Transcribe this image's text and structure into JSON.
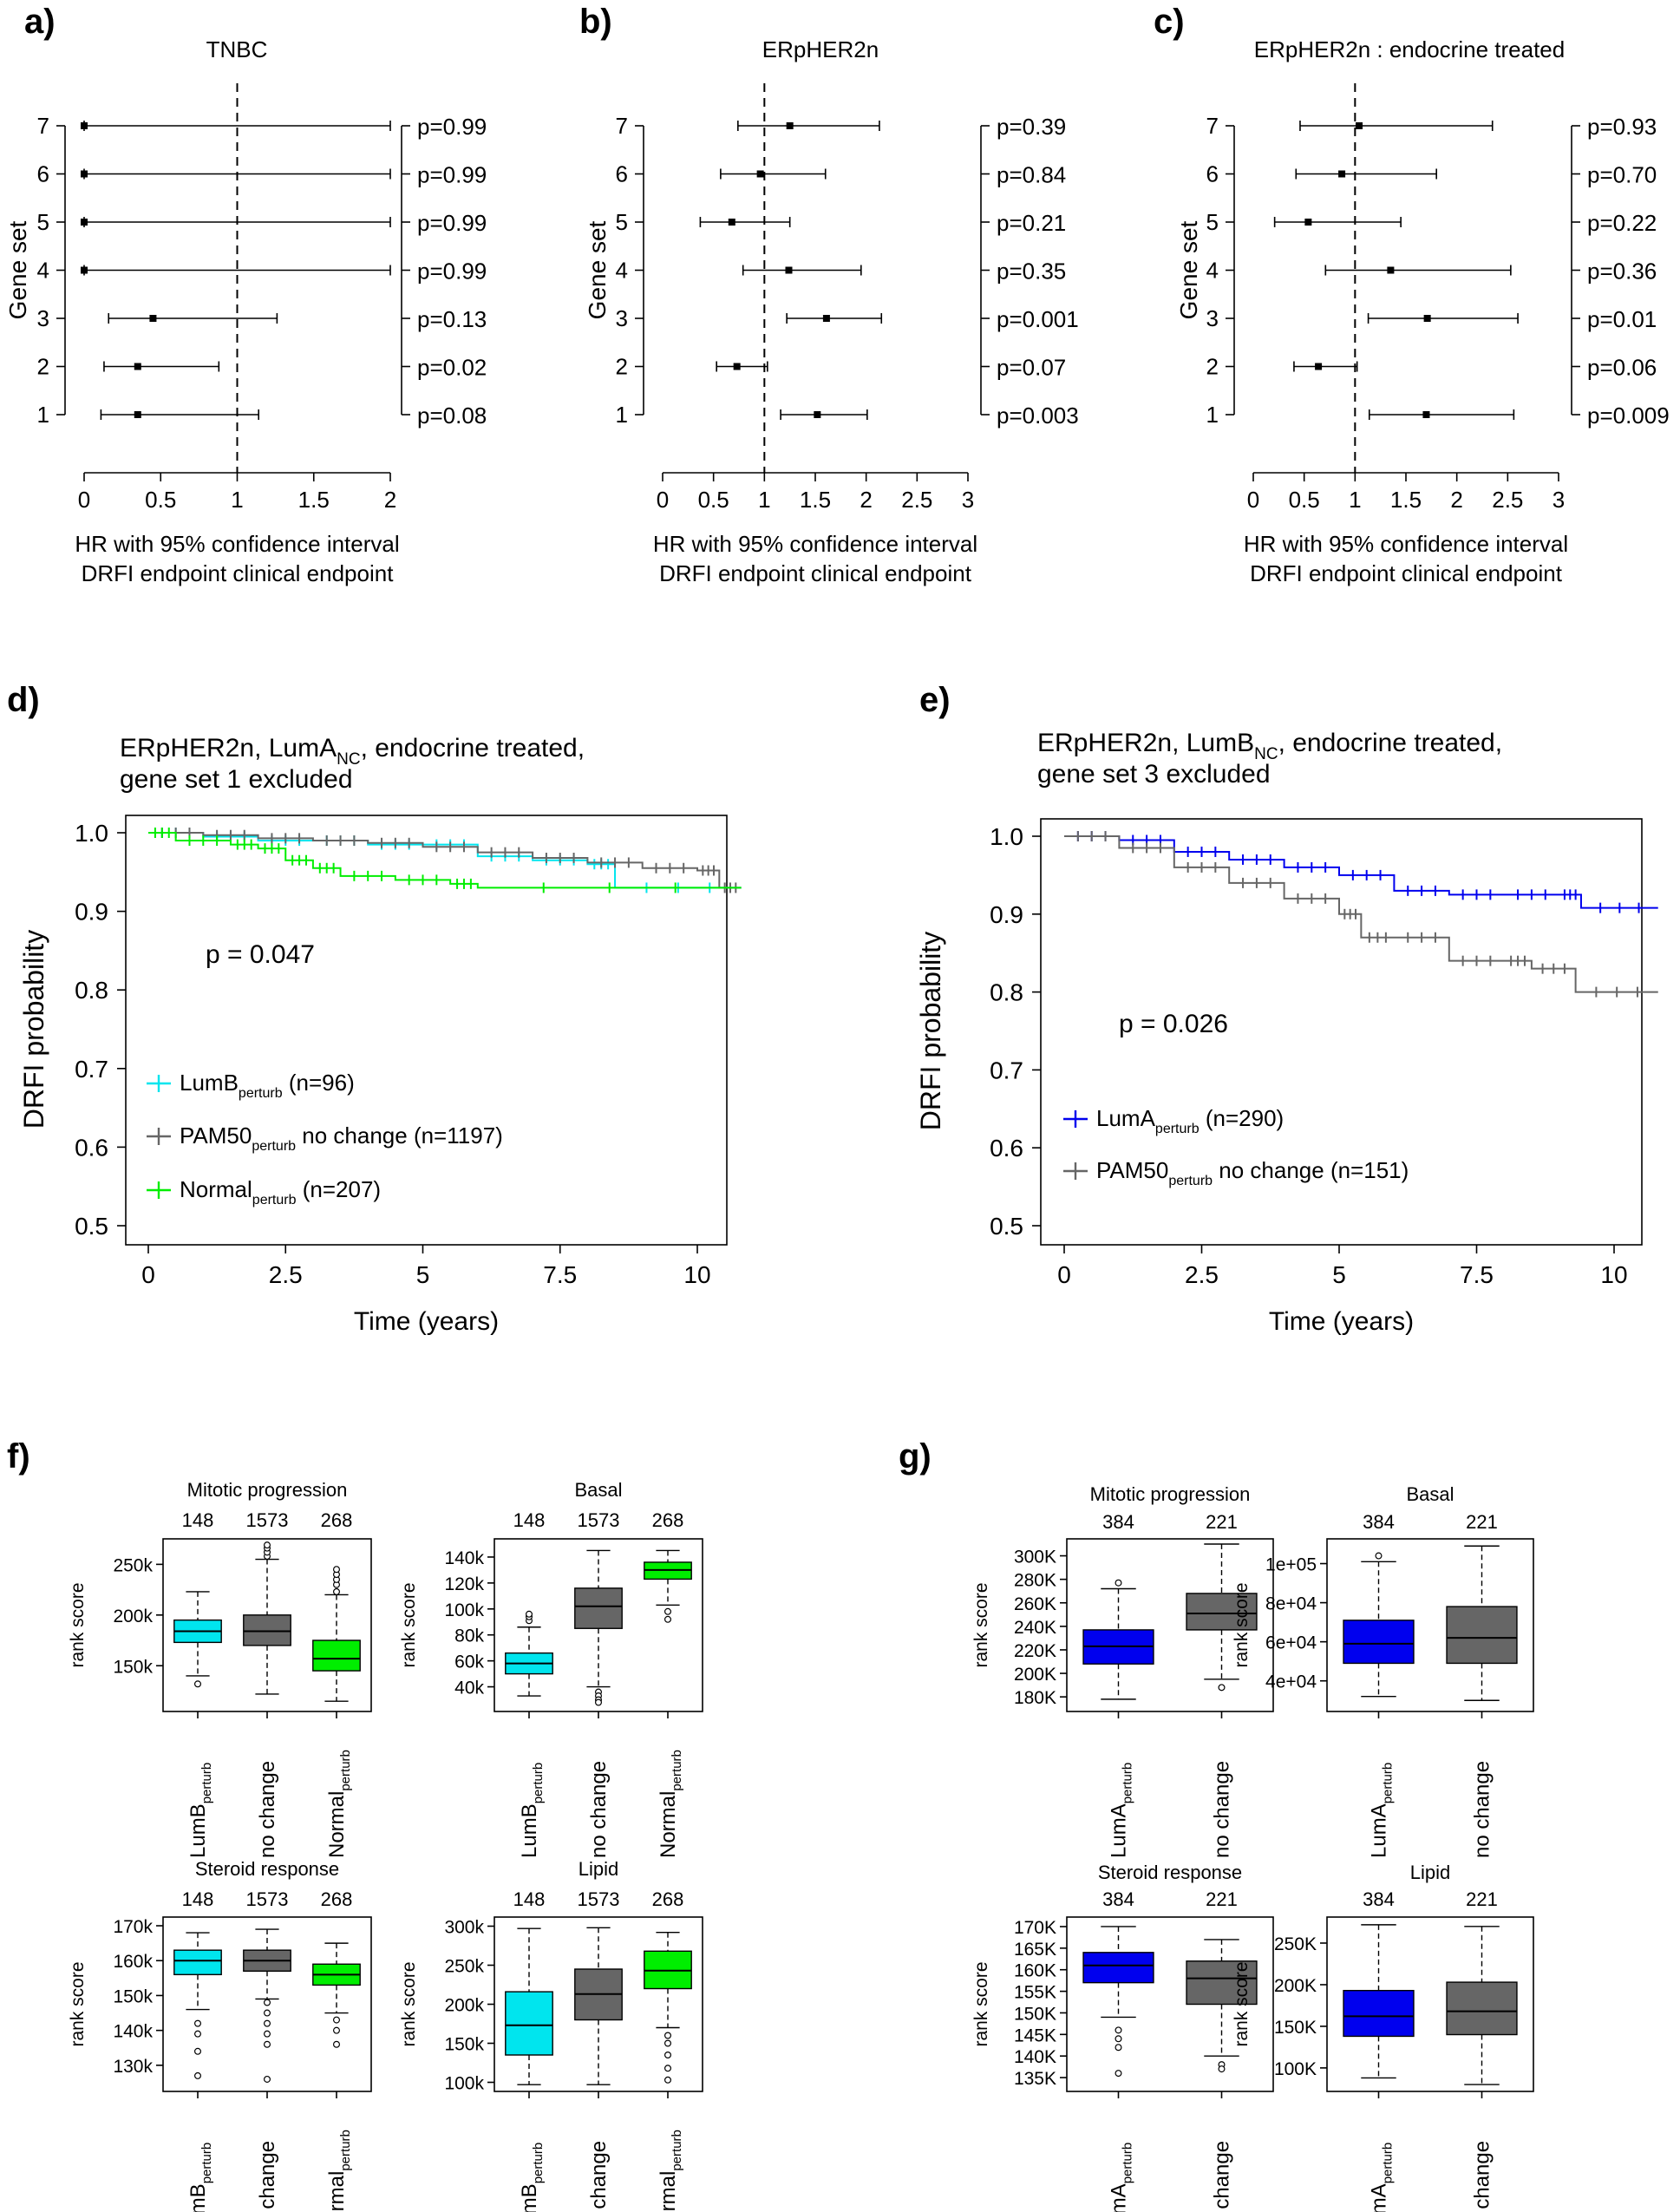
{
  "chart_data": [
    {
      "panel": "a)",
      "type": "forest",
      "title": "TNBC",
      "ylabel": "Gene set",
      "xlabel_lines": [
        "HR with 95% confidence interval",
        "DRFI endpoint clinical endpoint"
      ],
      "xlim": [
        0,
        2
      ],
      "xticks": [
        "0",
        "0.5",
        "1",
        "1.5",
        "2"
      ],
      "ref_line": 1,
      "rows": [
        {
          "set": "7",
          "hr": 0.0,
          "lo": 0.0,
          "hi": 2.0,
          "p": "p=0.99"
        },
        {
          "set": "6",
          "hr": 0.0,
          "lo": 0.0,
          "hi": 2.0,
          "p": "p=0.99"
        },
        {
          "set": "5",
          "hr": 0.0,
          "lo": 0.0,
          "hi": 2.0,
          "p": "p=0.99"
        },
        {
          "set": "4",
          "hr": 0.0,
          "lo": 0.0,
          "hi": 2.0,
          "p": "p=0.99"
        },
        {
          "set": "3",
          "hr": 0.45,
          "lo": 0.16,
          "hi": 1.26,
          "p": "p=0.13"
        },
        {
          "set": "2",
          "hr": 0.35,
          "lo": 0.13,
          "hi": 0.88,
          "p": "p=0.02"
        },
        {
          "set": "1",
          "hr": 0.35,
          "lo": 0.11,
          "hi": 1.14,
          "p": "p=0.08"
        }
      ]
    },
    {
      "panel": "b)",
      "type": "forest",
      "title": "ERpHER2n",
      "ylabel": "Gene set",
      "xlabel_lines": [
        "HR with 95% confidence interval",
        "DRFI endpoint clinical endpoint"
      ],
      "xlim": [
        0,
        3
      ],
      "xticks": [
        "0",
        "0.5",
        "1",
        "1.5",
        "2",
        "2.5",
        "3"
      ],
      "ref_line": 1,
      "rows": [
        {
          "set": "7",
          "hr": 1.25,
          "lo": 0.74,
          "hi": 2.13,
          "p": "p=0.39"
        },
        {
          "set": "6",
          "hr": 0.96,
          "lo": 0.57,
          "hi": 1.6,
          "p": "p=0.84"
        },
        {
          "set": "5",
          "hr": 0.68,
          "lo": 0.37,
          "hi": 1.25,
          "p": "p=0.21"
        },
        {
          "set": "4",
          "hr": 1.24,
          "lo": 0.79,
          "hi": 1.95,
          "p": "p=0.35"
        },
        {
          "set": "3",
          "hr": 1.61,
          "lo": 1.22,
          "hi": 2.15,
          "p": "p=0.001"
        },
        {
          "set": "2",
          "hr": 0.73,
          "lo": 0.53,
          "hi": 1.03,
          "p": "p=0.07"
        },
        {
          "set": "1",
          "hr": 1.52,
          "lo": 1.16,
          "hi": 2.01,
          "p": "p=0.003"
        }
      ]
    },
    {
      "panel": "c)",
      "type": "forest",
      "title": "ERpHER2n : endocrine treated",
      "ylabel": "Gene set",
      "xlabel_lines": [
        "HR with 95% confidence interval",
        "DRFI endpoint clinical endpoint"
      ],
      "xlim": [
        0,
        3
      ],
      "xticks": [
        "0",
        "0.5",
        "1",
        "1.5",
        "2",
        "2.5",
        "3"
      ],
      "ref_line": 1,
      "rows": [
        {
          "set": "7",
          "hr": 1.04,
          "lo": 0.46,
          "hi": 2.35,
          "p": "p=0.93"
        },
        {
          "set": "6",
          "hr": 0.87,
          "lo": 0.42,
          "hi": 1.8,
          "p": "p=0.70"
        },
        {
          "set": "5",
          "hr": 0.54,
          "lo": 0.21,
          "hi": 1.45,
          "p": "p=0.22"
        },
        {
          "set": "4",
          "hr": 1.35,
          "lo": 0.71,
          "hi": 2.53,
          "p": "p=0.36"
        },
        {
          "set": "3",
          "hr": 1.71,
          "lo": 1.13,
          "hi": 2.6,
          "p": "p=0.01"
        },
        {
          "set": "2",
          "hr": 0.64,
          "lo": 0.4,
          "hi": 1.02,
          "p": "p=0.06"
        },
        {
          "set": "1",
          "hr": 1.7,
          "lo": 1.14,
          "hi": 2.56,
          "p": "p=0.009"
        }
      ]
    },
    {
      "panel": "d)",
      "type": "line",
      "title_lines": [
        "ERpHER2n, LumAₙₑ endocrine treated,",
        "gene set 1 excluded"
      ],
      "title_parts": {
        "pre": "ERpHER2n, LumA",
        "sub": "NC",
        "post": ", endocrine treated,",
        "line2": "gene set 1 excluded"
      },
      "xlabel": "Time (years)",
      "ylabel": "DRFI probability",
      "xlim": [
        0,
        10.8
      ],
      "ylim": [
        0.5,
        1.0
      ],
      "xticks": [
        "0",
        "2.5",
        "5",
        "7.5",
        "10"
      ],
      "yticks": [
        "0.5",
        "0.6",
        "0.7",
        "0.8",
        "0.9",
        "1.0"
      ],
      "annotation": "p = 0.047",
      "series": [
        {
          "name": "LumB",
          "sub": "perturb",
          "suffix": " (n=96)",
          "color": "#00e5ee",
          "x": [
            0,
            1.0,
            2.0,
            3.0,
            4.0,
            5.0,
            6.0,
            7.0,
            8.0,
            8.5,
            10.8
          ],
          "y": [
            1.0,
            0.995,
            0.99,
            0.99,
            0.985,
            0.985,
            0.97,
            0.965,
            0.96,
            0.93,
            0.93
          ]
        },
        {
          "name": "PAM50",
          "sub": "perturb",
          "suffix": " no change (n=1197)",
          "color": "#666666",
          "x": [
            0,
            1.0,
            2.0,
            3.0,
            4.0,
            5.0,
            6.0,
            7.0,
            8.0,
            9.0,
            10.0,
            10.4,
            10.8
          ],
          "y": [
            1.0,
            0.997,
            0.993,
            0.99,
            0.987,
            0.982,
            0.975,
            0.968,
            0.962,
            0.955,
            0.952,
            0.93,
            0.93
          ]
        },
        {
          "name": "Normal",
          "sub": "perturb",
          "suffix": " (n=207)",
          "color": "#00ee00",
          "x": [
            0,
            0.5,
            1.5,
            2.0,
            2.5,
            3.0,
            3.5,
            4.5,
            5.5,
            6.0,
            10.8
          ],
          "y": [
            1.0,
            0.99,
            0.985,
            0.98,
            0.965,
            0.955,
            0.945,
            0.94,
            0.935,
            0.93,
            0.93
          ]
        }
      ]
    },
    {
      "panel": "e)",
      "type": "line",
      "title_parts": {
        "pre": "ERpHER2n, LumB",
        "sub": "NC",
        "post": ", endocrine treated,",
        "line2": "gene set 3 excluded"
      },
      "xlabel": "Time (years)",
      "ylabel": "DRFI probability",
      "xlim": [
        0,
        10.8
      ],
      "ylim": [
        0.5,
        1.0
      ],
      "xticks": [
        "0",
        "2.5",
        "5",
        "7.5",
        "10"
      ],
      "yticks": [
        "0.5",
        "0.6",
        "0.7",
        "0.8",
        "0.9",
        "1.0"
      ],
      "annotation": "p = 0.026",
      "series": [
        {
          "name": "LumA",
          "sub": "perturb",
          "suffix": " (n=290)",
          "color": "#0000ee",
          "x": [
            0,
            1.0,
            2.0,
            3.0,
            4.0,
            5.0,
            6.0,
            7.0,
            8.0,
            9.0,
            9.4,
            10.8
          ],
          "y": [
            1.0,
            0.995,
            0.98,
            0.97,
            0.96,
            0.95,
            0.93,
            0.925,
            0.925,
            0.925,
            0.908,
            0.908
          ]
        },
        {
          "name": "PAM50",
          "sub": "perturb",
          "suffix": " no change (n=151)",
          "color": "#666666",
          "x": [
            0,
            1.0,
            2.0,
            3.0,
            4.0,
            5.0,
            5.4,
            6.0,
            7.0,
            8.0,
            8.5,
            9.3,
            10.8
          ],
          "y": [
            1.0,
            0.985,
            0.96,
            0.94,
            0.92,
            0.9,
            0.87,
            0.87,
            0.84,
            0.84,
            0.83,
            0.8,
            0.8
          ]
        }
      ]
    },
    {
      "panel": "f)",
      "type": "boxplot",
      "ylabel": "rank score",
      "counts": [
        "148",
        "1573",
        "268"
      ],
      "categories": [
        {
          "name": "LumB",
          "sub": "perturb"
        },
        {
          "name": "no change",
          "sub": ""
        },
        {
          "name": "Normal",
          "sub": "perturb"
        }
      ],
      "colors": [
        "#00e5ee",
        "#666666",
        "#00ee00"
      ],
      "subplots": [
        {
          "title": "Mitotic progression",
          "ylim": [
            110000,
            270000
          ],
          "yticks": [
            {
              "v": 150000,
              "t": "150k"
            },
            {
              "v": 200000,
              "t": "200k"
            },
            {
              "v": 250000,
              "t": "250k"
            }
          ],
          "boxes": [
            {
              "q1": 173000,
              "med": 184000,
              "q3": 195000,
              "lo": 140000,
              "hi": 223000,
              "out": [
                132000
              ]
            },
            {
              "q1": 170000,
              "med": 184000,
              "q3": 200000,
              "lo": 122000,
              "hi": 255000,
              "out": [
                258000,
                262000,
                266000,
                269000
              ]
            },
            {
              "q1": 145000,
              "med": 157000,
              "q3": 175000,
              "lo": 115000,
              "hi": 220000,
              "out": [
                223000,
                230000,
                235000,
                240000,
                245000
              ]
            }
          ]
        },
        {
          "title": "Basal",
          "ylim": [
            25000,
            150000
          ],
          "yticks": [
            {
              "v": 40000,
              "t": "40k"
            },
            {
              "v": 60000,
              "t": "60k"
            },
            {
              "v": 80000,
              "t": "80k"
            },
            {
              "v": 100000,
              "t": "100k"
            },
            {
              "v": 120000,
              "t": "120k"
            },
            {
              "v": 140000,
              "t": "140k"
            }
          ],
          "boxes": [
            {
              "q1": 50000,
              "med": 58000,
              "q3": 66000,
              "lo": 33000,
              "hi": 86000,
              "out": [
                91000,
                94000,
                96000
              ]
            },
            {
              "q1": 85000,
              "med": 102000,
              "q3": 116000,
              "lo": 40000,
              "hi": 145000,
              "out": [
                36000,
                33000,
                30000,
                28000
              ]
            },
            {
              "q1": 123000,
              "med": 130000,
              "q3": 136000,
              "lo": 103000,
              "hi": 145000,
              "out": [
                98000,
                92000
              ]
            }
          ]
        },
        {
          "title": "Steroid response",
          "ylim": [
            124000,
            171000
          ],
          "yticks": [
            {
              "v": 130000,
              "t": "130k"
            },
            {
              "v": 140000,
              "t": "140k"
            },
            {
              "v": 150000,
              "t": "150k"
            },
            {
              "v": 160000,
              "t": "160k"
            },
            {
              "v": 170000,
              "t": "170k"
            }
          ],
          "boxes": [
            {
              "q1": 156000,
              "med": 160000,
              "q3": 163000,
              "lo": 146000,
              "hi": 168000,
              "out": [
                142000,
                139000,
                134000,
                127000
              ]
            },
            {
              "q1": 157000,
              "med": 160000,
              "q3": 163000,
              "lo": 149000,
              "hi": 169000,
              "out": [
                148000,
                145000,
                142000,
                139000,
                136000,
                126000
              ]
            },
            {
              "q1": 153000,
              "med": 156000,
              "q3": 159000,
              "lo": 145000,
              "hi": 165000,
              "out": [
                143000,
                140000,
                136000
              ]
            }
          ]
        },
        {
          "title": "Lipid",
          "ylim": [
            95000,
            305000
          ],
          "yticks": [
            {
              "v": 100000,
              "t": "100k"
            },
            {
              "v": 150000,
              "t": "150k"
            },
            {
              "v": 200000,
              "t": "200k"
            },
            {
              "v": 250000,
              "t": "250k"
            },
            {
              "v": 300000,
              "t": "300k"
            }
          ],
          "boxes": [
            {
              "q1": 135000,
              "med": 173000,
              "q3": 216000,
              "lo": 97000,
              "hi": 297000,
              "out": []
            },
            {
              "q1": 180000,
              "med": 213000,
              "q3": 245000,
              "lo": 97000,
              "hi": 298000,
              "out": []
            },
            {
              "q1": 220000,
              "med": 243000,
              "q3": 268000,
              "lo": 170000,
              "hi": 292000,
              "out": [
                160000,
                150000,
                135000,
                118000,
                103000
              ]
            }
          ]
        }
      ]
    },
    {
      "panel": "g)",
      "type": "boxplot",
      "ylabel": "rank score",
      "counts": [
        "384",
        "221"
      ],
      "categories": [
        {
          "name": "LumA",
          "sub": "perturb"
        },
        {
          "name": "no change",
          "sub": ""
        }
      ],
      "colors": [
        "#0000ee",
        "#666666"
      ],
      "subplots": [
        {
          "title": "Mitotic progression",
          "ylim": [
            172000,
            310000
          ],
          "yticks": [
            {
              "v": 180000,
              "t": "180K"
            },
            {
              "v": 200000,
              "t": "200K"
            },
            {
              "v": 220000,
              "t": "220K"
            },
            {
              "v": 240000,
              "t": "240K"
            },
            {
              "v": 260000,
              "t": "260K"
            },
            {
              "v": 280000,
              "t": "280K"
            },
            {
              "v": 300000,
              "t": "300K"
            }
          ],
          "boxes": [
            {
              "q1": 208000,
              "med": 223000,
              "q3": 237000,
              "lo": 178000,
              "hi": 272000,
              "out": [
                277000
              ]
            },
            {
              "q1": 237000,
              "med": 251000,
              "q3": 268000,
              "lo": 195000,
              "hi": 310000,
              "out": [
                188000
              ]
            }
          ]
        },
        {
          "title": "Basal",
          "ylim": [
            27000,
            110000
          ],
          "yticks": [
            {
              "v": 40000,
              "t": "4e+04"
            },
            {
              "v": 60000,
              "t": "6e+04"
            },
            {
              "v": 80000,
              "t": "8e+04"
            },
            {
              "v": 100000,
              "t": "1e+05"
            }
          ],
          "boxes": [
            {
              "q1": 49000,
              "med": 59000,
              "q3": 71000,
              "lo": 32000,
              "hi": 101000,
              "out": [
                104000
              ]
            },
            {
              "q1": 49000,
              "med": 62000,
              "q3": 78000,
              "lo": 30000,
              "hi": 109000,
              "out": []
            }
          ]
        },
        {
          "title": "Steroid response",
          "ylim": [
            133000,
            171000
          ],
          "yticks": [
            {
              "v": 135000,
              "t": "135K"
            },
            {
              "v": 140000,
              "t": "140K"
            },
            {
              "v": 145000,
              "t": "145K"
            },
            {
              "v": 150000,
              "t": "150K"
            },
            {
              "v": 155000,
              "t": "155K"
            },
            {
              "v": 160000,
              "t": "160K"
            },
            {
              "v": 165000,
              "t": "165K"
            },
            {
              "v": 170000,
              "t": "170K"
            }
          ],
          "boxes": [
            {
              "q1": 157000,
              "med": 161000,
              "q3": 164000,
              "lo": 149000,
              "hi": 170000,
              "out": [
                146000,
                144000,
                142000,
                136000
              ]
            },
            {
              "q1": 152000,
              "med": 158000,
              "q3": 162000,
              "lo": 140000,
              "hi": 167000,
              "out": [
                138000,
                137000
              ]
            }
          ]
        },
        {
          "title": "Lipid",
          "ylim": [
            78000,
            275000
          ],
          "yticks": [
            {
              "v": 100000,
              "t": "100K"
            },
            {
              "v": 150000,
              "t": "150K"
            },
            {
              "v": 200000,
              "t": "200K"
            },
            {
              "v": 250000,
              "t": "250K"
            }
          ],
          "boxes": [
            {
              "q1": 138000,
              "med": 162000,
              "q3": 193000,
              "lo": 88000,
              "hi": 272000,
              "out": []
            },
            {
              "q1": 140000,
              "med": 168000,
              "q3": 203000,
              "lo": 80000,
              "hi": 270000,
              "out": []
            }
          ]
        }
      ]
    }
  ]
}
